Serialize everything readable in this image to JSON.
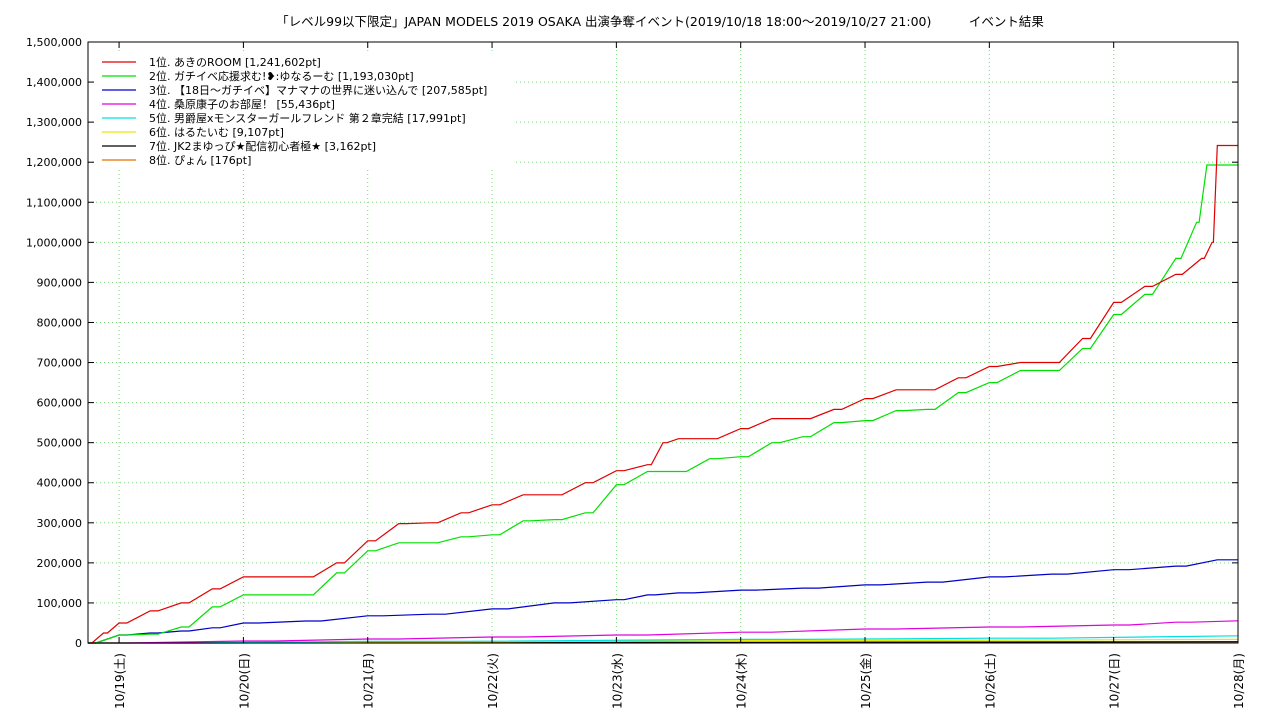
{
  "chart_data": {
    "type": "line",
    "title": "「レベル99以下限定」JAPAN MODELS 2019 OSAKA 出演争奪イベント(2019/10/18 18:00～2019/10/27 21:00)　　　イベント結果",
    "xlabel": "",
    "ylabel": "",
    "ylim": [
      0,
      1500000
    ],
    "xlim": [
      "2019-10-18 18:00",
      "2019-10-27 24:00"
    ],
    "y_ticks": [
      "0",
      "100,000",
      "200,000",
      "300,000",
      "400,000",
      "500,000",
      "600,000",
      "700,000",
      "800,000",
      "900,000",
      "1,000,000",
      "1,100,000",
      "1,200,000",
      "1,300,000",
      "1,400,000",
      "1,500,000"
    ],
    "x_tick_labels": [
      "10/19(土)",
      "10/20(日)",
      "10/21(月)",
      "10/22(火)",
      "10/23(水)",
      "10/24(木)",
      "10/25(金)",
      "10/26(土)",
      "10/27(日)",
      "10/28(月)"
    ],
    "grid": true,
    "legend_position": "top-left",
    "series": [
      {
        "name": "1位. あきのROOM [1,241,602pt]",
        "color": "#e00000",
        "points": [
          [
            "2019-10-18 18:00",
            0
          ],
          [
            "2019-10-18 21:00",
            25000
          ],
          [
            "2019-10-19 00:00",
            50000
          ],
          [
            "2019-10-19 06:00",
            80000
          ],
          [
            "2019-10-19 12:00",
            100000
          ],
          [
            "2019-10-19 18:00",
            135000
          ],
          [
            "2019-10-20 00:00",
            165000
          ],
          [
            "2019-10-20 12:00",
            165000
          ],
          [
            "2019-10-20 18:00",
            200000
          ],
          [
            "2019-10-21 00:00",
            255000
          ],
          [
            "2019-10-21 06:00",
            298000
          ],
          [
            "2019-10-21 12:00",
            300000
          ],
          [
            "2019-10-21 18:00",
            325000
          ],
          [
            "2019-10-22 00:00",
            345000
          ],
          [
            "2019-10-22 06:00",
            370000
          ],
          [
            "2019-10-22 12:00",
            370000
          ],
          [
            "2019-10-22 18:00",
            400000
          ],
          [
            "2019-10-23 00:00",
            430000
          ],
          [
            "2019-10-23 06:00",
            445000
          ],
          [
            "2019-10-23 09:00",
            500000
          ],
          [
            "2019-10-23 12:00",
            510000
          ],
          [
            "2019-10-23 18:00",
            510000
          ],
          [
            "2019-10-24 00:00",
            535000
          ],
          [
            "2019-10-24 06:00",
            560000
          ],
          [
            "2019-10-24 12:00",
            560000
          ],
          [
            "2019-10-24 18:00",
            583000
          ],
          [
            "2019-10-25 00:00",
            610000
          ],
          [
            "2019-10-25 06:00",
            632000
          ],
          [
            "2019-10-25 12:00",
            632000
          ],
          [
            "2019-10-25 18:00",
            662000
          ],
          [
            "2019-10-26 00:00",
            690000
          ],
          [
            "2019-10-26 06:00",
            700000
          ],
          [
            "2019-10-26 12:00",
            700000
          ],
          [
            "2019-10-26 18:00",
            760000
          ],
          [
            "2019-10-27 00:00",
            850000
          ],
          [
            "2019-10-27 06:00",
            890000
          ],
          [
            "2019-10-27 12:00",
            920000
          ],
          [
            "2019-10-27 17:00",
            960000
          ],
          [
            "2019-10-27 19:00",
            1000000
          ],
          [
            "2019-10-27 20:00",
            1241602
          ],
          [
            "2019-10-27 24:00",
            1241602
          ]
        ]
      },
      {
        "name": "2位. ガチイベ応援求む!❥:ゆなるーむ [1,193,030pt]",
        "color": "#00e000",
        "points": [
          [
            "2019-10-18 18:00",
            0
          ],
          [
            "2019-10-19 00:00",
            20000
          ],
          [
            "2019-10-19 06:00",
            22000
          ],
          [
            "2019-10-19 12:00",
            40000
          ],
          [
            "2019-10-19 18:00",
            90000
          ],
          [
            "2019-10-20 00:00",
            120000
          ],
          [
            "2019-10-20 12:00",
            120000
          ],
          [
            "2019-10-20 18:00",
            175000
          ],
          [
            "2019-10-21 00:00",
            230000
          ],
          [
            "2019-10-21 06:00",
            250000
          ],
          [
            "2019-10-21 12:00",
            250000
          ],
          [
            "2019-10-21 18:00",
            265000
          ],
          [
            "2019-10-22 00:00",
            270000
          ],
          [
            "2019-10-22 06:00",
            305000
          ],
          [
            "2019-10-22 12:00",
            308000
          ],
          [
            "2019-10-22 18:00",
            325000
          ],
          [
            "2019-10-23 00:00",
            395000
          ],
          [
            "2019-10-23 06:00",
            428000
          ],
          [
            "2019-10-23 12:00",
            428000
          ],
          [
            "2019-10-23 18:00",
            460000
          ],
          [
            "2019-10-24 00:00",
            465000
          ],
          [
            "2019-10-24 06:00",
            500000
          ],
          [
            "2019-10-24 12:00",
            515000
          ],
          [
            "2019-10-24 18:00",
            550000
          ],
          [
            "2019-10-25 00:00",
            555000
          ],
          [
            "2019-10-25 06:00",
            580000
          ],
          [
            "2019-10-25 12:00",
            583000
          ],
          [
            "2019-10-25 18:00",
            625000
          ],
          [
            "2019-10-26 00:00",
            650000
          ],
          [
            "2019-10-26 06:00",
            680000
          ],
          [
            "2019-10-26 12:00",
            680000
          ],
          [
            "2019-10-26 18:00",
            735000
          ],
          [
            "2019-10-27 00:00",
            820000
          ],
          [
            "2019-10-27 06:00",
            870000
          ],
          [
            "2019-10-27 12:00",
            960000
          ],
          [
            "2019-10-27 16:00",
            1050000
          ],
          [
            "2019-10-27 18:00",
            1193030
          ],
          [
            "2019-10-27 24:00",
            1193030
          ]
        ]
      },
      {
        "name": "3位. 【18日～ガチイベ】マナマナの世界に迷い込んで [207,585pt]",
        "color": "#0000c8",
        "points": [
          [
            "2019-10-18 18:00",
            0
          ],
          [
            "2019-10-19 00:00",
            20000
          ],
          [
            "2019-10-19 06:00",
            25000
          ],
          [
            "2019-10-19 12:00",
            30000
          ],
          [
            "2019-10-19 18:00",
            38000
          ],
          [
            "2019-10-20 00:00",
            50000
          ],
          [
            "2019-10-20 12:00",
            55000
          ],
          [
            "2019-10-21 00:00",
            68000
          ],
          [
            "2019-10-21 12:00",
            72000
          ],
          [
            "2019-10-22 00:00",
            85000
          ],
          [
            "2019-10-22 12:00",
            100000
          ],
          [
            "2019-10-23 00:00",
            108000
          ],
          [
            "2019-10-23 06:00",
            120000
          ],
          [
            "2019-10-23 12:00",
            125000
          ],
          [
            "2019-10-24 00:00",
            132000
          ],
          [
            "2019-10-24 12:00",
            137000
          ],
          [
            "2019-10-25 00:00",
            145000
          ],
          [
            "2019-10-25 12:00",
            152000
          ],
          [
            "2019-10-26 00:00",
            165000
          ],
          [
            "2019-10-26 12:00",
            172000
          ],
          [
            "2019-10-27 00:00",
            183000
          ],
          [
            "2019-10-27 12:00",
            192000
          ],
          [
            "2019-10-27 20:00",
            207585
          ],
          [
            "2019-10-27 24:00",
            207585
          ]
        ]
      },
      {
        "name": "4位. 桑原康子のお部屋！ [55,436pt]",
        "color": "#e000e0",
        "points": [
          [
            "2019-10-18 18:00",
            0
          ],
          [
            "2019-10-20 00:00",
            5000
          ],
          [
            "2019-10-21 00:00",
            10000
          ],
          [
            "2019-10-22 00:00",
            15000
          ],
          [
            "2019-10-23 00:00",
            20000
          ],
          [
            "2019-10-24 00:00",
            27000
          ],
          [
            "2019-10-25 00:00",
            35000
          ],
          [
            "2019-10-26 00:00",
            40000
          ],
          [
            "2019-10-27 00:00",
            45000
          ],
          [
            "2019-10-27 12:00",
            52000
          ],
          [
            "2019-10-27 24:00",
            55436
          ]
        ]
      },
      {
        "name": "5位. 男爵屋xモンスターガールフレンド 第２章完結 [17,991pt]",
        "color": "#00e0e0",
        "points": [
          [
            "2019-10-18 18:00",
            0
          ],
          [
            "2019-10-21 00:00",
            4000
          ],
          [
            "2019-10-24 00:00",
            9000
          ],
          [
            "2019-10-26 00:00",
            12000
          ],
          [
            "2019-10-27 24:00",
            17991
          ]
        ]
      },
      {
        "name": "6位. はるたいむ [9,107pt]",
        "color": "#e8e800",
        "points": [
          [
            "2019-10-18 18:00",
            0
          ],
          [
            "2019-10-21 00:00",
            3000
          ],
          [
            "2019-10-24 00:00",
            6000
          ],
          [
            "2019-10-27 24:00",
            9107
          ]
        ]
      },
      {
        "name": "7位. JK2まゆっぴ★配信初心者極★ [3,162pt]",
        "color": "#000000",
        "points": [
          [
            "2019-10-18 18:00",
            0
          ],
          [
            "2019-10-22 00:00",
            1500
          ],
          [
            "2019-10-27 24:00",
            3162
          ]
        ]
      },
      {
        "name": "8位. ぴょん [176pt]",
        "color": "#e07000",
        "points": [
          [
            "2019-10-18 18:00",
            0
          ],
          [
            "2019-10-27 24:00",
            176
          ]
        ]
      }
    ]
  }
}
